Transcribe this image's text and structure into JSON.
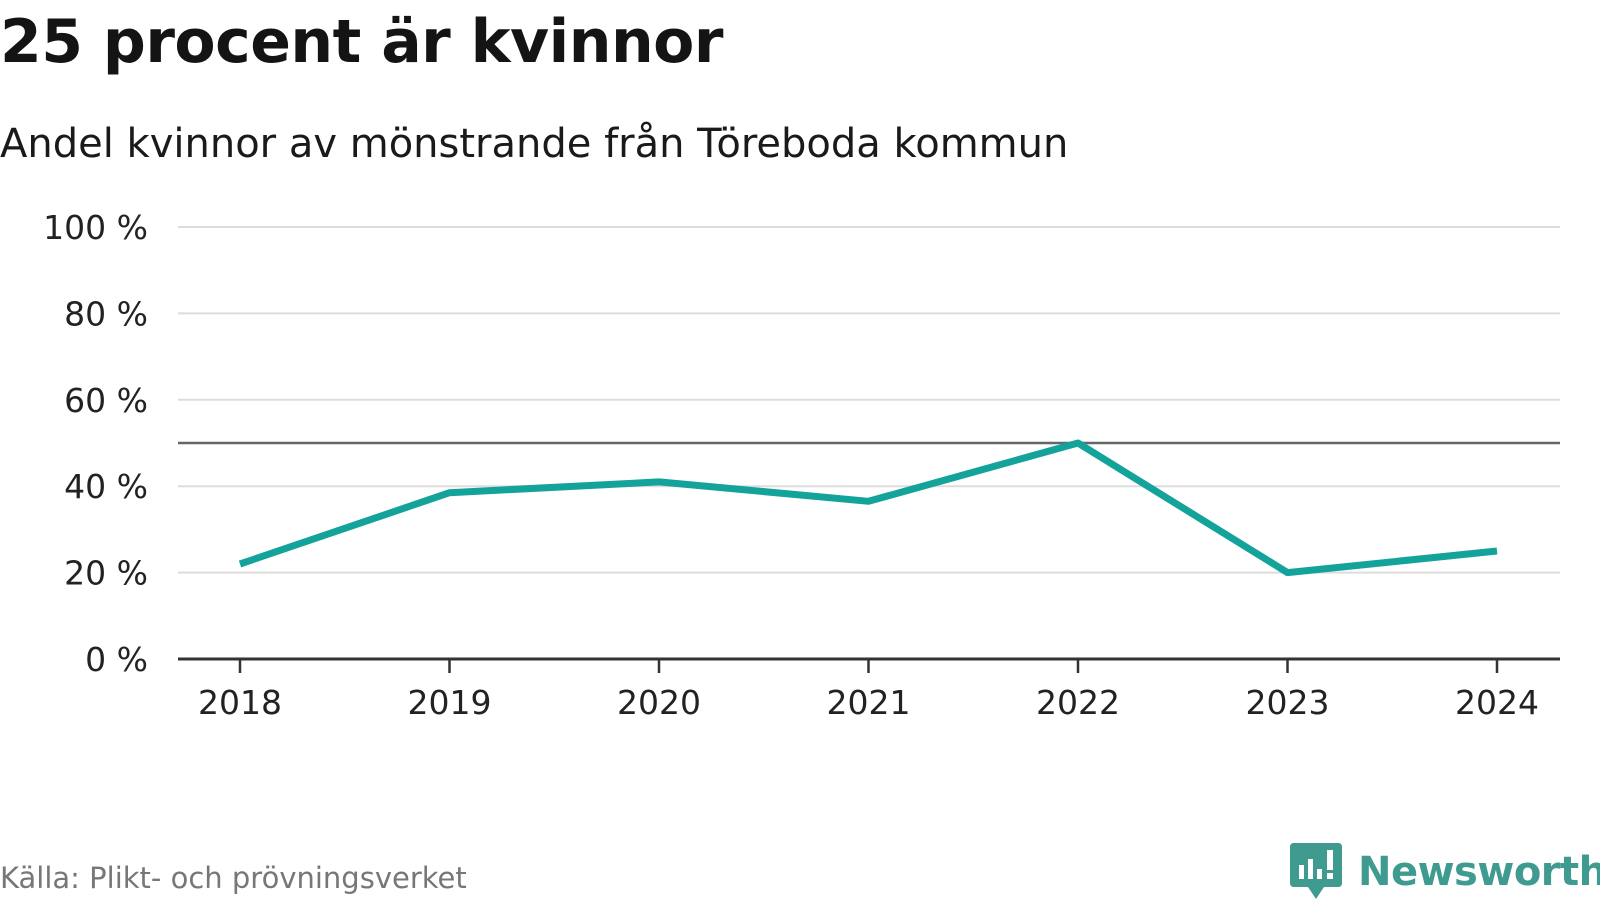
{
  "title": "25 procent är kvinnor",
  "subtitle": "Andel kvinnor av mönstrande från Töreboda kommun",
  "source": "Källa: Plikt- och prövningsverket",
  "brand": {
    "name": "Newsworthy",
    "icon": "newsworthy-logo-icon",
    "color": "#3f9a8f"
  },
  "colors": {
    "line": "#14a39a",
    "grid": "#dddddd",
    "reference": "#666666",
    "axis": "#333333"
  },
  "chart_data": {
    "type": "line",
    "title": "25 procent är kvinnor",
    "subtitle": "Andel kvinnor av mönstrande från Töreboda kommun",
    "xlabel": "",
    "ylabel": "",
    "x": [
      "2018",
      "2019",
      "2020",
      "2021",
      "2022",
      "2023",
      "2024"
    ],
    "series": [
      {
        "name": "Andel kvinnor",
        "values": [
          22,
          38.5,
          41,
          36.5,
          50,
          20,
          25
        ]
      }
    ],
    "ylim": [
      0,
      100
    ],
    "yticks": [
      0,
      20,
      40,
      60,
      80,
      100
    ],
    "ytick_labels": [
      "0 %",
      "20 %",
      "40 %",
      "60 %",
      "80 %",
      "100 %"
    ],
    "reference_line": 50,
    "grid": true,
    "legend": "none"
  }
}
